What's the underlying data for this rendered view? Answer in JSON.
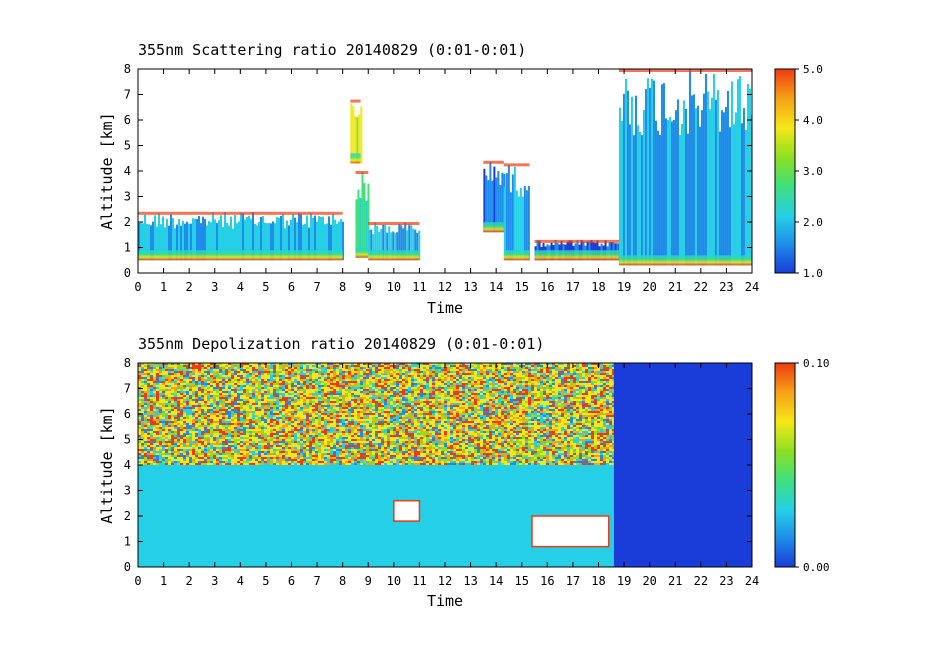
{
  "chart_data": [
    {
      "type": "heatmap",
      "title": "355nm Scattering ratio  20140829 (0:01-0:01)",
      "xlabel": "Time",
      "ylabel": "Altitude [km]",
      "xlim": [
        0,
        24
      ],
      "ylim": [
        0,
        8
      ],
      "xticks": [
        "0",
        "1",
        "2",
        "3",
        "4",
        "5",
        "6",
        "7",
        "8",
        "9",
        "10",
        "11",
        "12",
        "13",
        "14",
        "15",
        "16",
        "17",
        "18",
        "19",
        "20",
        "21",
        "22",
        "23",
        "24"
      ],
      "yticks": [
        "0",
        "1",
        "2",
        "3",
        "4",
        "5",
        "6",
        "7",
        "8"
      ],
      "colorbar": {
        "min": 1.0,
        "max": 5.0,
        "ticks": [
          "1.0",
          "2.0",
          "3.0",
          "4.0",
          "5.0"
        ]
      },
      "colormap": [
        "#1a3cd8",
        "#1e8ce8",
        "#25d0e6",
        "#3fe07a",
        "#8ee020",
        "#f5e818",
        "#f5a017",
        "#ef3a12"
      ],
      "features": [
        {
          "t0": 0.0,
          "t1": 8.0,
          "z0": 0.5,
          "z1": 2.4,
          "value": 2.1
        },
        {
          "t0": 8.5,
          "t1": 9.0,
          "z0": 0.6,
          "z1": 4.0,
          "value": 2.6
        },
        {
          "t0": 8.3,
          "t1": 8.7,
          "z0": 4.3,
          "z1": 6.8,
          "value": 3.5
        },
        {
          "t0": 9.0,
          "t1": 11.0,
          "z0": 0.5,
          "z1": 2.0,
          "value": 2.0
        },
        {
          "t0": 13.5,
          "t1": 14.3,
          "z0": 1.6,
          "z1": 4.4,
          "value": 1.6
        },
        {
          "t0": 14.3,
          "t1": 15.3,
          "z0": 0.5,
          "z1": 4.3,
          "value": 2.0
        },
        {
          "t0": 15.5,
          "t1": 18.8,
          "z0": 0.5,
          "z1": 1.3,
          "value": 1.5
        },
        {
          "t0": 18.8,
          "t1": 24.0,
          "z0": 0.3,
          "z1": 8.0,
          "value": 2.0
        }
      ]
    },
    {
      "type": "heatmap",
      "title": "355nm Depolization ratio  20140829 (0:01-0:01)",
      "xlabel": "Time",
      "ylabel": "Altitude [km]",
      "xlim": [
        0,
        24
      ],
      "ylim": [
        0,
        8
      ],
      "xticks": [
        "0",
        "1",
        "2",
        "3",
        "4",
        "5",
        "6",
        "7",
        "8",
        "9",
        "10",
        "11",
        "12",
        "13",
        "14",
        "15",
        "16",
        "17",
        "18",
        "19",
        "20",
        "21",
        "22",
        "23",
        "24"
      ],
      "yticks": [
        "0",
        "1",
        "2",
        "3",
        "4",
        "5",
        "6",
        "7",
        "8"
      ],
      "colorbar": {
        "min": 0.0,
        "max": 0.1,
        "ticks": [
          "0.00",
          "0.10"
        ]
      },
      "colormap": [
        "#1a3cd8",
        "#1e8ce8",
        "#25d0e6",
        "#3fe07a",
        "#8ee020",
        "#f5e818",
        "#f5a017",
        "#ef3a12"
      ],
      "features": [
        {
          "t0": 0.0,
          "t1": 18.6,
          "z0": 4.0,
          "z1": 8.0,
          "value": 0.07
        },
        {
          "t0": 0.0,
          "t1": 18.6,
          "z0": 0.0,
          "z1": 4.0,
          "value": 0.025
        },
        {
          "t0": 18.6,
          "t1": 24.0,
          "z0": 0.0,
          "z1": 8.0,
          "value": 0.005
        },
        {
          "t0": 15.4,
          "t1": 18.4,
          "z0": 0.8,
          "z1": 2.0,
          "value": 0.1
        },
        {
          "t0": 10.0,
          "t1": 11.0,
          "z0": 1.8,
          "z1": 2.6,
          "value": 0.1
        }
      ]
    }
  ]
}
